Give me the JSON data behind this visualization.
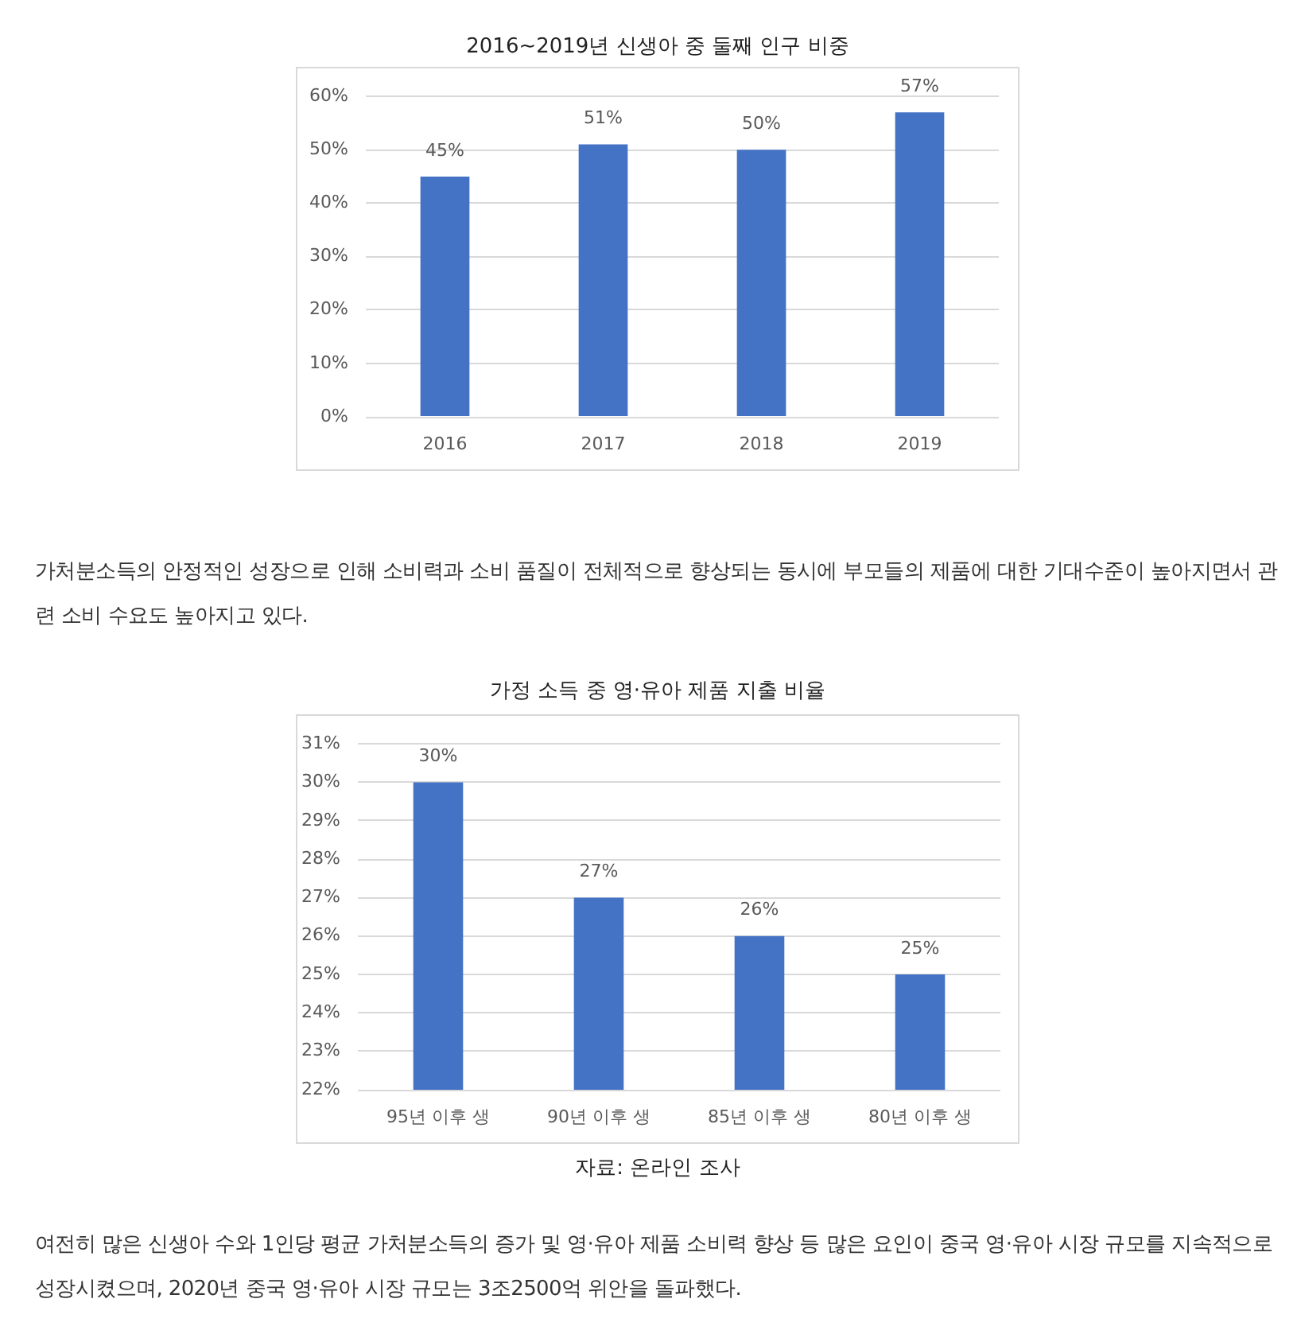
{
  "chart_data": [
    {
      "type": "bar",
      "title": "2016~2019년 신생아 중 둘째 인구 비중",
      "categories": [
        "2016",
        "2017",
        "2018",
        "2019"
      ],
      "values": [
        45,
        51,
        50,
        57
      ],
      "value_labels": [
        "45%",
        "51%",
        "50%",
        "57%"
      ],
      "color": "#4472c4",
      "ylim": [
        0,
        60
      ],
      "yticks": [
        {
          "value": 0,
          "label": "0%"
        },
        {
          "value": 10,
          "label": "10%"
        },
        {
          "value": 20,
          "label": "20%"
        },
        {
          "value": 30,
          "label": "30%"
        },
        {
          "value": 40,
          "label": "40%"
        },
        {
          "value": 50,
          "label": "50%"
        },
        {
          "value": 60,
          "label": "60%"
        }
      ],
      "grid": "y",
      "annotations": [
        "가처분소득의 안정적인 성장으로 인해 소비력과 소비 품질이 전체적으로 향상되는 동시에 부모들의 제품에 대한 기대수준이 높아지면서 관련 소비 수요도 높아지고 있다."
      ]
    },
    {
      "type": "bar",
      "title": "가정 소득 중 영·유아 제품 지출 비율",
      "categories": [
        "95년 이후 생",
        "90년 이후 생",
        "85년 이후 생",
        "80년 이후 생"
      ],
      "values": [
        30,
        27,
        26,
        25
      ],
      "value_labels": [
        "30%",
        "27%",
        "26%",
        "25%"
      ],
      "color": "#4472c4",
      "ylim": [
        22,
        31
      ],
      "yticks": [
        {
          "value": 22,
          "label": "22%"
        },
        {
          "value": 23,
          "label": "23%"
        },
        {
          "value": 24,
          "label": "24%"
        },
        {
          "value": 25,
          "label": "25%"
        },
        {
          "value": 26,
          "label": "26%"
        },
        {
          "value": 27,
          "label": "27%"
        },
        {
          "value": 28,
          "label": "28%"
        },
        {
          "value": 29,
          "label": "29%"
        },
        {
          "value": 30,
          "label": "30%"
        },
        {
          "value": 31,
          "label": "31%"
        }
      ],
      "grid": "y",
      "annotations": [
        "자료: 온라인 조사",
        "여전히 많은 신생아 수와 1인당 평균 가처분소득의 증가 및 영·유아 제품 소비력 향상 등 많은 요인이 중국 영·유아 시장 규모를 지속적으로 성장시켰으며, 2020년 중국 영·유아 시장 규모는 3조2500억 위안을 돌파했다."
      ]
    }
  ]
}
